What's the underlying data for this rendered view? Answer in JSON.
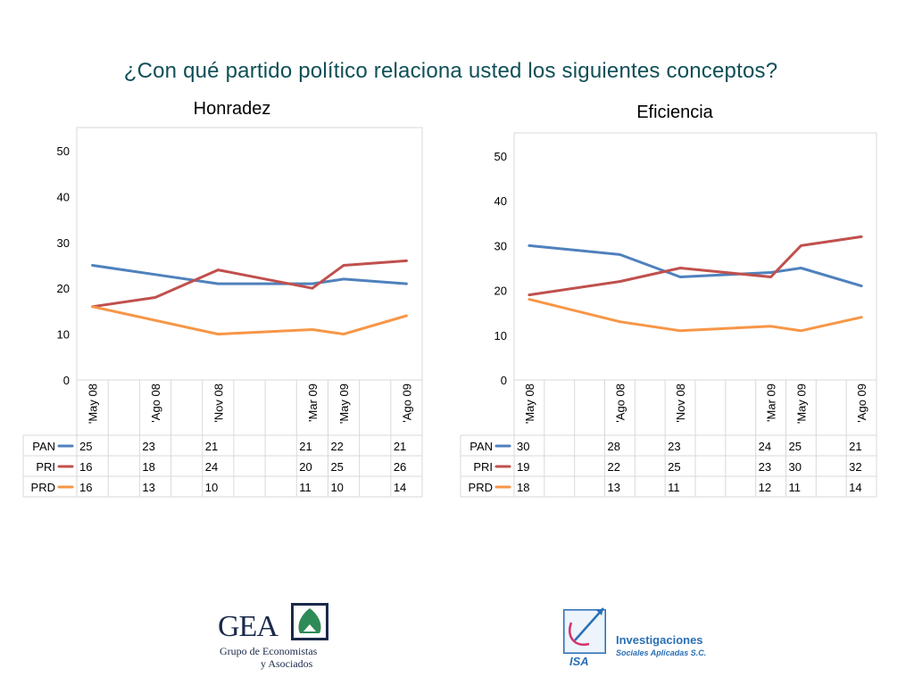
{
  "page": {
    "title": "¿Con qué partido político relaciona usted los siguientes conceptos?"
  },
  "chart_data": [
    {
      "type": "line",
      "title": "Honradez",
      "categories": [
        "'May 08",
        "",
        "'Ago 08",
        "",
        "'Nov 08",
        "",
        "",
        "'Mar 09",
        "'May 09",
        "",
        "'Ago 09"
      ],
      "ylim": [
        0,
        50
      ],
      "yticks": [
        0,
        10,
        20,
        30,
        40,
        50
      ],
      "grid": false,
      "legend": "table-left",
      "series": [
        {
          "name": "PAN",
          "color": "#4f81bd",
          "values": [
            25,
            null,
            23,
            null,
            21,
            null,
            null,
            21,
            22,
            null,
            21
          ]
        },
        {
          "name": "PRI",
          "color": "#c0504d",
          "values": [
            16,
            null,
            18,
            null,
            24,
            null,
            null,
            20,
            25,
            null,
            26
          ]
        },
        {
          "name": "PRD",
          "color": "#f79646",
          "values": [
            16,
            null,
            13,
            null,
            10,
            null,
            null,
            11,
            10,
            null,
            14
          ]
        }
      ]
    },
    {
      "type": "line",
      "title": "Eficiencia",
      "categories": [
        "'May 08",
        "",
        "",
        "'Ago 08",
        "",
        "'Nov 08",
        "",
        "",
        "'Mar 09",
        "'May 09",
        "",
        "'Ago 09"
      ],
      "ylim": [
        0,
        50
      ],
      "yticks": [
        0,
        10,
        20,
        30,
        40,
        50
      ],
      "grid": false,
      "legend": "table-left",
      "series": [
        {
          "name": "PAN",
          "color": "#4f81bd",
          "values": [
            30,
            null,
            null,
            28,
            null,
            23,
            null,
            null,
            24,
            25,
            null,
            21
          ]
        },
        {
          "name": "PRI",
          "color": "#c0504d",
          "values": [
            19,
            null,
            null,
            22,
            null,
            25,
            null,
            null,
            23,
            30,
            null,
            32
          ]
        },
        {
          "name": "PRD",
          "color": "#f79646",
          "values": [
            18,
            null,
            null,
            13,
            null,
            11,
            null,
            null,
            12,
            11,
            null,
            14
          ]
        }
      ]
    }
  ],
  "logos": {
    "gea": {
      "name": "GEA",
      "line1": "Grupo de Economistas",
      "line2": "y Asociados",
      "color": "#1b2a4a",
      "accent": "#2e8b57"
    },
    "isa": {
      "name": "ISA",
      "line1": "Investigaciones",
      "line2": "Sociales Aplicadas S.C.",
      "color": "#2a6fb5",
      "accent": "#d6336c"
    }
  }
}
